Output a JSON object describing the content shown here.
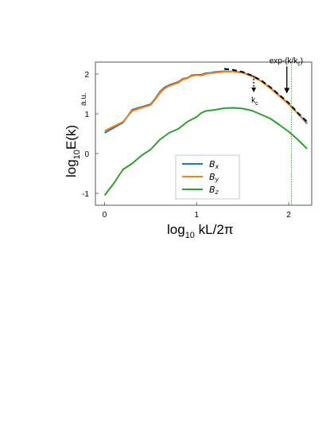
{
  "chart_data": {
    "type": "line",
    "xlabel_main": "log",
    "xlabel_sub": "10",
    "xlabel_rest": " kL/2π",
    "ylabel_main": "log",
    "ylabel_sub": "10",
    "ylabel_rest": "E(k)",
    "y_units": "a.u.",
    "xlim": [
      -0.1,
      2.25
    ],
    "ylim": [
      -1.3,
      2.3
    ],
    "x_ticks": [
      0,
      1,
      2
    ],
    "y_ticks": [
      -1,
      0,
      1,
      2
    ],
    "x_tick_labels": [
      "0",
      "1",
      "2"
    ],
    "y_tick_labels": [
      "-1",
      "0",
      "1",
      "2"
    ],
    "series": [
      {
        "name_base": "B",
        "name_sub": "x",
        "color": "#1f77b4",
        "x": [
          0,
          0.2,
          0.3,
          0.4,
          0.5,
          0.55,
          0.6,
          0.65,
          0.7,
          0.8,
          0.85,
          0.9,
          0.95,
          1.0,
          1.05,
          1.1,
          1.15,
          1.2,
          1.3,
          1.4,
          1.5,
          1.6,
          1.7,
          1.8,
          1.9,
          2.0,
          2.1,
          2.2
        ],
        "y": [
          0.52,
          0.78,
          1.1,
          1.17,
          1.24,
          1.38,
          1.55,
          1.66,
          1.72,
          1.8,
          1.88,
          1.9,
          1.97,
          1.98,
          1.98,
          2.02,
          2.03,
          2.05,
          2.07,
          2.06,
          2.04,
          1.95,
          1.82,
          1.65,
          1.45,
          1.25,
          1.0,
          0.75
        ]
      },
      {
        "name_base": "B",
        "name_sub": "y",
        "color": "#ff7f0e",
        "x": [
          0,
          0.2,
          0.3,
          0.4,
          0.5,
          0.55,
          0.6,
          0.65,
          0.7,
          0.8,
          0.85,
          0.9,
          0.95,
          1.0,
          1.05,
          1.1,
          1.15,
          1.2,
          1.3,
          1.4,
          1.5,
          1.6,
          1.7,
          1.8,
          1.9,
          2.0,
          2.1,
          2.2
        ],
        "y": [
          0.57,
          0.8,
          1.07,
          1.15,
          1.22,
          1.36,
          1.52,
          1.63,
          1.7,
          1.78,
          1.86,
          1.89,
          1.95,
          1.97,
          1.96,
          2.0,
          2.02,
          2.03,
          2.06,
          2.06,
          2.03,
          1.94,
          1.82,
          1.64,
          1.44,
          1.24,
          1.0,
          0.77
        ]
      },
      {
        "name_base": "B",
        "name_sub": "z",
        "color": "#2ca02c",
        "x": [
          0,
          0.1,
          0.2,
          0.3,
          0.4,
          0.5,
          0.6,
          0.7,
          0.8,
          0.9,
          0.95,
          1.0,
          1.05,
          1.1,
          1.2,
          1.3,
          1.4,
          1.5,
          1.6,
          1.7,
          1.8,
          1.9,
          2.0,
          2.1,
          2.2
        ],
        "y": [
          -1.05,
          -0.75,
          -0.4,
          -0.25,
          -0.05,
          0.1,
          0.35,
          0.52,
          0.62,
          0.8,
          0.86,
          0.92,
          1.02,
          1.07,
          1.1,
          1.14,
          1.15,
          1.13,
          1.08,
          0.98,
          0.88,
          0.72,
          0.55,
          0.35,
          0.12
        ]
      }
    ],
    "fit": {
      "label_main": "exp-(k/k",
      "label_sub": "c",
      "label_end": ")",
      "color": "#000000",
      "x": [
        1.3,
        1.4,
        1.5,
        1.6,
        1.7,
        1.8,
        1.9,
        2.0,
        2.1,
        2.2
      ],
      "y": [
        2.13,
        2.1,
        2.05,
        1.96,
        1.84,
        1.67,
        1.47,
        1.27,
        1.02,
        0.8
      ]
    },
    "kc_label_main": "k",
    "kc_label_sub": "c",
    "kc_x": 1.62,
    "kc_y": 1.88,
    "fit_arrow_x": 1.98,
    "fit_arrow_y": 1.47,
    "vline_x": 2.03,
    "vline_color": "#2ca02c"
  }
}
